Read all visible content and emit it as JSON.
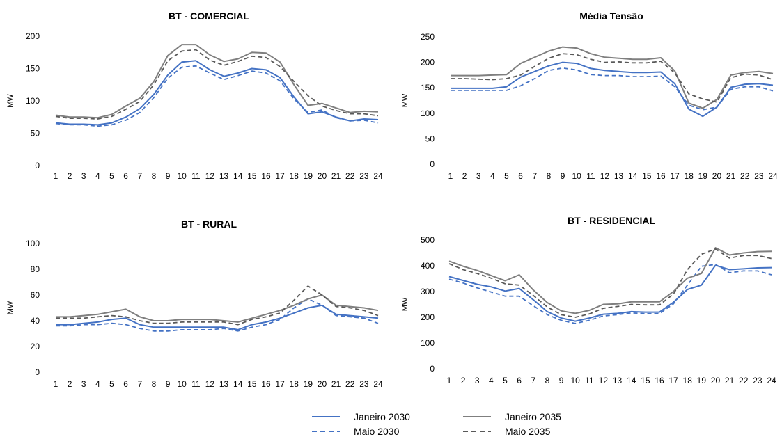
{
  "chart_data": [
    {
      "type": "line",
      "title": "BT - COMERCIAL",
      "ylabel": "MW",
      "xlabel": "",
      "ylim": [
        0,
        200
      ],
      "yticks": [
        0,
        50,
        100,
        150,
        200
      ],
      "x": [
        1,
        2,
        3,
        4,
        5,
        6,
        7,
        8,
        9,
        10,
        11,
        12,
        13,
        14,
        15,
        16,
        17,
        18,
        19,
        20,
        21,
        22,
        23,
        24
      ],
      "series": [
        {
          "name": "Janeiro 2030",
          "color": "#4472C4",
          "dash": "solid",
          "values": [
            66,
            64,
            64,
            63,
            66,
            75,
            88,
            110,
            140,
            160,
            162,
            148,
            138,
            143,
            150,
            148,
            136,
            106,
            80,
            83,
            75,
            69,
            72,
            71
          ]
        },
        {
          "name": "Maio 2030",
          "color": "#4472C4",
          "dash": "dashed",
          "values": [
            65,
            63,
            63,
            61,
            63,
            70,
            82,
            105,
            135,
            152,
            154,
            143,
            133,
            139,
            146,
            143,
            131,
            103,
            82,
            86,
            74,
            69,
            70,
            66
          ]
        },
        {
          "name": "Janeiro 2035",
          "color": "#7F7F7F",
          "dash": "solid",
          "values": [
            78,
            75,
            75,
            74,
            79,
            92,
            104,
            130,
            170,
            187,
            187,
            171,
            161,
            165,
            175,
            174,
            160,
            125,
            93,
            96,
            89,
            82,
            84,
            83
          ]
        },
        {
          "name": "Maio 2035",
          "color": "#595959",
          "dash": "dashed",
          "values": [
            76,
            73,
            73,
            72,
            76,
            87,
            99,
            125,
            162,
            177,
            179,
            163,
            155,
            161,
            169,
            167,
            153,
            130,
            108,
            92,
            85,
            80,
            80,
            77
          ]
        }
      ]
    },
    {
      "type": "line",
      "title": "Média Tensão",
      "ylabel": "MW",
      "xlabel": "",
      "ylim": [
        0,
        250
      ],
      "yticks": [
        0,
        50,
        100,
        150,
        200,
        250
      ],
      "x": [
        1,
        2,
        3,
        4,
        5,
        6,
        7,
        8,
        9,
        10,
        11,
        12,
        13,
        14,
        15,
        16,
        17,
        18,
        19,
        20,
        21,
        22,
        23,
        24
      ],
      "series": [
        {
          "name": "Janeiro 2030",
          "color": "#4472C4",
          "dash": "solid",
          "values": [
            149,
            149,
            149,
            149,
            152,
            171,
            182,
            193,
            200,
            198,
            188,
            184,
            182,
            180,
            180,
            181,
            158,
            108,
            94,
            112,
            151,
            157,
            158,
            155
          ]
        },
        {
          "name": "Maio 2030",
          "color": "#4472C4",
          "dash": "dashed",
          "values": [
            145,
            145,
            145,
            145,
            145,
            154,
            168,
            184,
            189,
            185,
            176,
            174,
            174,
            172,
            172,
            173,
            152,
            116,
            107,
            112,
            147,
            152,
            152,
            144
          ]
        },
        {
          "name": "Janeiro 2035",
          "color": "#7F7F7F",
          "dash": "solid",
          "values": [
            174,
            174,
            174,
            175,
            176,
            198,
            210,
            222,
            230,
            228,
            217,
            210,
            208,
            206,
            206,
            209,
            183,
            120,
            110,
            127,
            175,
            180,
            182,
            178
          ]
        },
        {
          "name": "Maio 2035",
          "color": "#595959",
          "dash": "dashed",
          "values": [
            168,
            168,
            167,
            166,
            168,
            175,
            192,
            208,
            217,
            215,
            206,
            200,
            201,
            199,
            199,
            202,
            179,
            138,
            128,
            122,
            170,
            177,
            175,
            166
          ]
        }
      ]
    },
    {
      "type": "line",
      "title": "BT - RURAL",
      "ylabel": "MW",
      "xlabel": "",
      "ylim": [
        0,
        100
      ],
      "yticks": [
        0,
        20,
        40,
        60,
        80,
        100
      ],
      "x": [
        1,
        2,
        3,
        4,
        5,
        6,
        7,
        8,
        9,
        10,
        11,
        12,
        13,
        14,
        15,
        16,
        17,
        18,
        19,
        20,
        21,
        22,
        23,
        24
      ],
      "series": [
        {
          "name": "Janeiro 2030",
          "color": "#4472C4",
          "dash": "solid",
          "values": [
            37,
            37,
            38,
            39,
            41,
            42,
            37,
            35,
            35,
            35,
            35,
            35,
            35,
            33,
            37,
            39,
            42,
            46,
            50,
            52,
            45,
            44,
            43,
            42
          ]
        },
        {
          "name": "Maio 2030",
          "color": "#4472C4",
          "dash": "dashed",
          "values": [
            36,
            36,
            37,
            37,
            38,
            37,
            34,
            32,
            32,
            33,
            33,
            33,
            34,
            32,
            35,
            37,
            41,
            50,
            57,
            52,
            44,
            43,
            42,
            38
          ]
        },
        {
          "name": "Janeiro 2035",
          "color": "#7F7F7F",
          "dash": "solid",
          "values": [
            43,
            43,
            44,
            45,
            47,
            49,
            43,
            40,
            40,
            41,
            41,
            41,
            40,
            39,
            42,
            45,
            48,
            52,
            57,
            60,
            52,
            51,
            50,
            48
          ]
        },
        {
          "name": "Maio 2035",
          "color": "#595959",
          "dash": "dashed",
          "values": [
            42,
            42,
            42,
            43,
            44,
            43,
            40,
            38,
            38,
            39,
            39,
            39,
            39,
            37,
            41,
            43,
            46,
            56,
            67,
            60,
            51,
            50,
            48,
            44
          ]
        }
      ]
    },
    {
      "type": "line",
      "title": "BT - RESIDENCIAL",
      "ylabel": "MW",
      "xlabel": "",
      "ylim": [
        0,
        500
      ],
      "yticks": [
        0,
        100,
        200,
        300,
        400,
        500
      ],
      "x": [
        1,
        2,
        3,
        4,
        5,
        6,
        7,
        8,
        9,
        10,
        11,
        12,
        13,
        14,
        15,
        16,
        17,
        18,
        19,
        20,
        21,
        22,
        23,
        24
      ],
      "series": [
        {
          "name": "Janeiro 2030",
          "color": "#4472C4",
          "dash": "solid",
          "values": [
            358,
            343,
            328,
            318,
            302,
            312,
            268,
            222,
            197,
            185,
            197,
            212,
            215,
            222,
            220,
            220,
            258,
            308,
            325,
            402,
            385,
            388,
            392,
            393
          ]
        },
        {
          "name": "Maio 2030",
          "color": "#4472C4",
          "dash": "dashed",
          "values": [
            348,
            333,
            314,
            298,
            282,
            282,
            245,
            210,
            188,
            176,
            188,
            205,
            210,
            217,
            214,
            214,
            252,
            325,
            398,
            405,
            373,
            380,
            380,
            365
          ]
        },
        {
          "name": "Janeiro 2035",
          "color": "#7F7F7F",
          "dash": "solid",
          "values": [
            418,
            398,
            382,
            362,
            342,
            365,
            306,
            257,
            225,
            215,
            227,
            250,
            252,
            260,
            260,
            260,
            300,
            352,
            370,
            470,
            442,
            450,
            455,
            456
          ]
        },
        {
          "name": "Maio 2035",
          "color": "#595959",
          "dash": "dashed",
          "values": [
            408,
            385,
            370,
            352,
            330,
            325,
            285,
            240,
            210,
            200,
            213,
            235,
            242,
            250,
            248,
            248,
            290,
            385,
            445,
            465,
            430,
            440,
            440,
            428
          ]
        }
      ]
    }
  ],
  "legend": [
    {
      "label": "Janeiro 2030",
      "color": "#4472C4",
      "dash": "solid"
    },
    {
      "label": "Janeiro 2035",
      "color": "#7F7F7F",
      "dash": "solid"
    },
    {
      "label": "Maio 2030",
      "color": "#4472C4",
      "dash": "dashed"
    },
    {
      "label": "Maio 2035",
      "color": "#595959",
      "dash": "dashed"
    }
  ]
}
